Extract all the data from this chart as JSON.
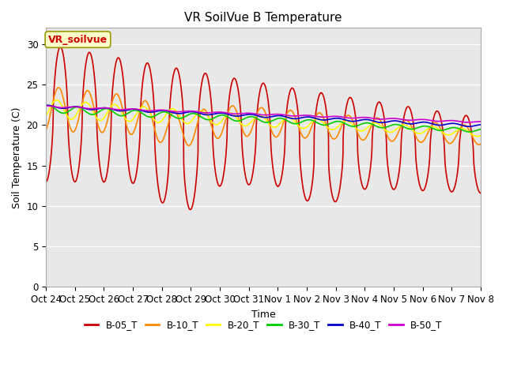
{
  "title": "VR SoilVue B Temperature",
  "xlabel": "Time",
  "ylabel": "Soil Temperature (C)",
  "ylim": [
    0,
    32
  ],
  "yticks": [
    0,
    5,
    10,
    15,
    20,
    25,
    30
  ],
  "x_labels": [
    "Oct 24",
    "Oct 25",
    "Oct 26",
    "Oct 27",
    "Oct 28",
    "Oct 29",
    "Oct 30",
    "Oct 31",
    "Nov 1",
    "Nov 2",
    "Nov 3",
    "Nov 4",
    "Nov 5",
    "Nov 6",
    "Nov 7",
    "Nov 8"
  ],
  "legend_label": "VR_soilvue",
  "series_labels": [
    "B-05_T",
    "B-10_T",
    "B-20_T",
    "B-30_T",
    "B-40_T",
    "B-50_T"
  ],
  "series_colors": [
    "#cc0000",
    "#ff8800",
    "#ffff00",
    "#00cc00",
    "#0000cc",
    "#cc00cc"
  ],
  "plot_bg_color": "#e8e8e8",
  "n_days": 15,
  "title_fontsize": 11
}
